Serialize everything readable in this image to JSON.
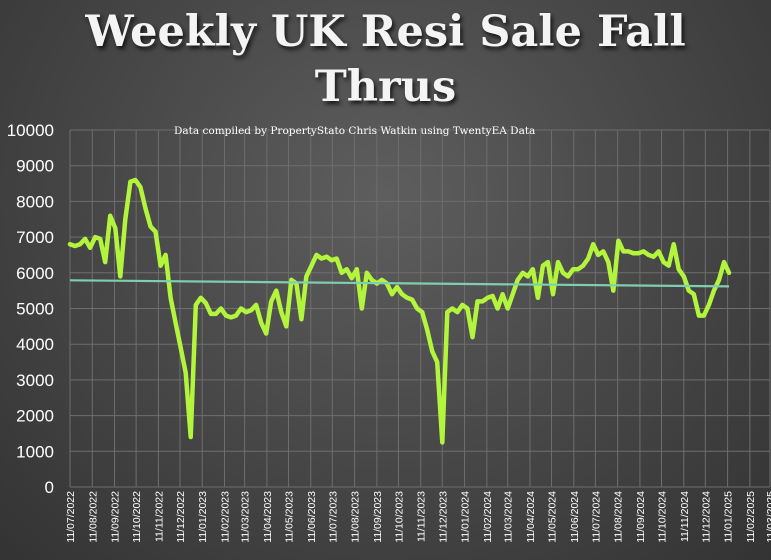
{
  "chart_data": {
    "type": "line",
    "title_lines": [
      "Weekly UK Resi Sale Fall",
      "Thrus"
    ],
    "subtitle": "Data compiled by PropertyStato Chris Watkin using TwentyEA Data",
    "ylim": [
      0,
      10000
    ],
    "yticks": [
      "0",
      "1000",
      "2000",
      "3000",
      "4000",
      "5000",
      "6000",
      "7000",
      "8000",
      "9000",
      "10000"
    ],
    "xlim": [
      "2022-07-11",
      "2025-03-11"
    ],
    "xticks": [
      "11/07/2022",
      "11/08/2022",
      "11/09/2022",
      "11/10/2022",
      "11/11/2022",
      "11/12/2022",
      "11/01/2023",
      "11/02/2023",
      "11/03/2023",
      "11/04/2023",
      "11/05/2023",
      "11/06/2023",
      "11/07/2023",
      "11/08/2023",
      "11/09/2023",
      "11/10/2023",
      "11/11/2023",
      "11/12/2023",
      "11/01/2024",
      "11/02/2024",
      "11/03/2024",
      "11/04/2024",
      "11/05/2024",
      "11/06/2024",
      "11/07/2024",
      "11/08/2024",
      "11/09/2024",
      "11/10/2024",
      "11/11/2024",
      "11/12/2024",
      "11/01/2025",
      "11/02/2025",
      "11/03/2025"
    ],
    "grid": true,
    "colors": {
      "series": "#b3f53c",
      "trend": "#7ecfb0",
      "grid": "#6e6e6e",
      "text": "#ffffff"
    },
    "series": [
      {
        "x": [
          "2022-07-11",
          "2022-07-18",
          "2022-07-25",
          "2022-08-01",
          "2022-08-08",
          "2022-08-15",
          "2022-08-22",
          "2022-08-29",
          "2022-09-05",
          "2022-09-12",
          "2022-09-19",
          "2022-09-26",
          "2022-10-03",
          "2022-10-10",
          "2022-10-17",
          "2022-10-24",
          "2022-10-31",
          "2022-11-07",
          "2022-11-14",
          "2022-11-21",
          "2022-11-28",
          "2022-12-05",
          "2022-12-12",
          "2022-12-19",
          "2022-12-26",
          "2023-01-02",
          "2023-01-09",
          "2023-01-16",
          "2023-01-23",
          "2023-01-30",
          "2023-02-06",
          "2023-02-13",
          "2023-02-20",
          "2023-02-27",
          "2023-03-06",
          "2023-03-13",
          "2023-03-20",
          "2023-03-27",
          "2023-04-03",
          "2023-04-10",
          "2023-04-17",
          "2023-04-24",
          "2023-05-01",
          "2023-05-08",
          "2023-05-15",
          "2023-05-22",
          "2023-05-29",
          "2023-06-05",
          "2023-06-12",
          "2023-06-19",
          "2023-06-26",
          "2023-07-03",
          "2023-07-10",
          "2023-07-17",
          "2023-07-24",
          "2023-07-31",
          "2023-08-07",
          "2023-08-14",
          "2023-08-21",
          "2023-08-28",
          "2023-09-04",
          "2023-09-11",
          "2023-09-18",
          "2023-09-25",
          "2023-10-02",
          "2023-10-09",
          "2023-10-16",
          "2023-10-23",
          "2023-10-30",
          "2023-11-06",
          "2023-11-13",
          "2023-11-20",
          "2023-11-27",
          "2023-12-04",
          "2023-12-11",
          "2023-12-18",
          "2023-12-25",
          "2024-01-01",
          "2024-01-08",
          "2024-01-15",
          "2024-01-22",
          "2024-01-29",
          "2024-02-05",
          "2024-02-12",
          "2024-02-19",
          "2024-02-26",
          "2024-03-04",
          "2024-03-11",
          "2024-03-18",
          "2024-03-25",
          "2024-04-01",
          "2024-04-08",
          "2024-04-15",
          "2024-04-22",
          "2024-04-29",
          "2024-05-06",
          "2024-05-13",
          "2024-05-20",
          "2024-05-27",
          "2024-06-03",
          "2024-06-10",
          "2024-06-17",
          "2024-06-24",
          "2024-07-01",
          "2024-07-08",
          "2024-07-15",
          "2024-07-22",
          "2024-07-29",
          "2024-08-05",
          "2024-08-12",
          "2024-08-19",
          "2024-08-26",
          "2024-09-02",
          "2024-09-09",
          "2024-09-16",
          "2024-09-23",
          "2024-09-30",
          "2024-10-07",
          "2024-10-14",
          "2024-10-21",
          "2024-10-28",
          "2024-11-04",
          "2024-11-11",
          "2024-11-18",
          "2024-11-25",
          "2024-12-02",
          "2024-12-09",
          "2024-12-16",
          "2024-12-23",
          "2024-12-30",
          "2025-01-06",
          "2025-01-13"
        ],
        "y": [
          6800,
          6750,
          6800,
          6950,
          6700,
          7000,
          6950,
          6300,
          7600,
          7250,
          5900,
          7500,
          8550,
          8600,
          8400,
          7800,
          7300,
          7150,
          6200,
          6500,
          5300,
          4600,
          3900,
          3200,
          1400,
          5100,
          5300,
          5150,
          4850,
          4850,
          5000,
          4800,
          4750,
          4800,
          5000,
          4900,
          4950,
          5100,
          4600,
          4300,
          5200,
          5500,
          4900,
          4500,
          5800,
          5700,
          4700,
          5900,
          6200,
          6500,
          6400,
          6450,
          6350,
          6400,
          6000,
          6100,
          5850,
          6100,
          5000,
          6000,
          5800,
          5700,
          5800,
          5700,
          5400,
          5600,
          5400,
          5300,
          5250,
          5000,
          4900,
          4400,
          3800,
          3500,
          1250,
          4900,
          5000,
          4900,
          5100,
          5000,
          4200,
          5200,
          5200,
          5300,
          5350,
          5000,
          5400,
          5000,
          5400,
          5800,
          6000,
          5900,
          6100,
          5300,
          6200,
          6300,
          5400,
          6300,
          6000,
          5900,
          6100,
          6100,
          6200,
          6400,
          6800,
          6500,
          6600,
          6300,
          5500,
          6900,
          6600,
          6600,
          6550,
          6550,
          6600,
          6500,
          6450,
          6600,
          6300,
          6200,
          6800,
          6100,
          5900,
          5500,
          5400,
          4800,
          4800,
          5100,
          5500,
          5800,
          6300,
          6000
        ]
      },
      {
        "x": [
          "2022-07-11",
          "2025-01-13"
        ],
        "y": [
          5790,
          5620
        ]
      }
    ]
  }
}
